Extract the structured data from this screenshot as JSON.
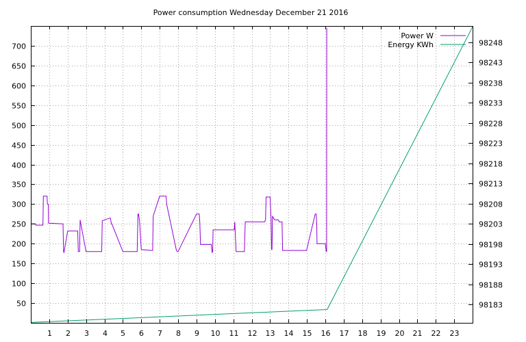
{
  "chart_data": {
    "type": "line",
    "title": "Power consumption Wednesday December 21 2016",
    "xlabel": "",
    "ylabel": "",
    "y2label": "",
    "grid": true,
    "legend_position": "top-right",
    "xlim": [
      0,
      24
    ],
    "ylim": [
      0,
      750
    ],
    "y2lim": [
      98178.5,
      98252
    ],
    "x_ticks": [
      1,
      2,
      3,
      4,
      5,
      6,
      7,
      8,
      9,
      10,
      11,
      12,
      13,
      14,
      15,
      16,
      17,
      18,
      19,
      20,
      21,
      22,
      23
    ],
    "y_ticks": [
      50,
      100,
      150,
      200,
      250,
      300,
      350,
      400,
      450,
      500,
      550,
      600,
      650,
      700
    ],
    "y2_ticks": [
      98183,
      98188,
      98193,
      98198,
      98203,
      98208,
      98213,
      98218,
      98223,
      98228,
      98233,
      98238,
      98243,
      98248
    ],
    "series": [
      {
        "name": "Power W",
        "axis": "y",
        "color": "#9400d3",
        "x": [
          0.0,
          0.25,
          0.26,
          0.66,
          0.68,
          0.7,
          0.72,
          0.88,
          0.9,
          0.95,
          0.96,
          1.0,
          1.7,
          1.75,
          1.78,
          1.8,
          2.0,
          2.1,
          2.12,
          2.55,
          2.58,
          2.65,
          2.68,
          3.0,
          3.85,
          3.88,
          4.3,
          4.32,
          4.38,
          4.4,
          5.0,
          5.75,
          5.78,
          5.82,
          5.85,
          5.9,
          6.0,
          6.55,
          6.58,
          6.62,
          6.65,
          7.0,
          7.35,
          7.38,
          7.9,
          7.95,
          7.98,
          8.0,
          9.0,
          9.15,
          9.18,
          9.22,
          9.25,
          9.8,
          9.85,
          9.88,
          9.9,
          10.0,
          11.05,
          11.08,
          11.15,
          11.5,
          11.55,
          11.6,
          11.65,
          12.0,
          12.7,
          12.75,
          12.78,
          12.82,
          12.85,
          13.0,
          13.05,
          13.08,
          13.1,
          13.13,
          13.18,
          13.25,
          13.45,
          13.5,
          13.65,
          13.68,
          14.0,
          14.95,
          14.98,
          15.45,
          15.5,
          15.53,
          15.55,
          16.0,
          16.05,
          16.07,
          16.08
        ],
        "values": [
          250,
          250,
          247,
          247,
          320,
          320,
          320,
          320,
          300,
          300,
          252,
          252,
          250,
          250,
          180,
          178,
          232,
          232,
          232,
          232,
          180,
          180,
          260,
          180,
          180,
          258,
          265,
          265,
          250,
          250,
          180,
          180,
          180,
          275,
          275,
          260,
          185,
          183,
          183,
          183,
          270,
          320,
          320,
          300,
          185,
          180,
          180,
          180,
          275,
          275,
          255,
          198,
          198,
          198,
          178,
          180,
          235,
          235,
          235,
          255,
          180,
          180,
          180,
          180,
          255,
          255,
          255,
          260,
          318,
          318,
          318,
          318,
          265,
          185,
          185,
          270,
          265,
          260,
          260,
          255,
          255,
          183,
          183,
          183,
          183,
          275,
          275,
          255,
          200,
          200,
          180,
          180,
          745
        ]
      },
      {
        "name": "Energy KWh",
        "axis": "y2",
        "color": "#009e73",
        "x": [
          0,
          16.1,
          24
        ],
        "values": [
          98178.6,
          98181.8,
          98251.8
        ]
      }
    ]
  }
}
